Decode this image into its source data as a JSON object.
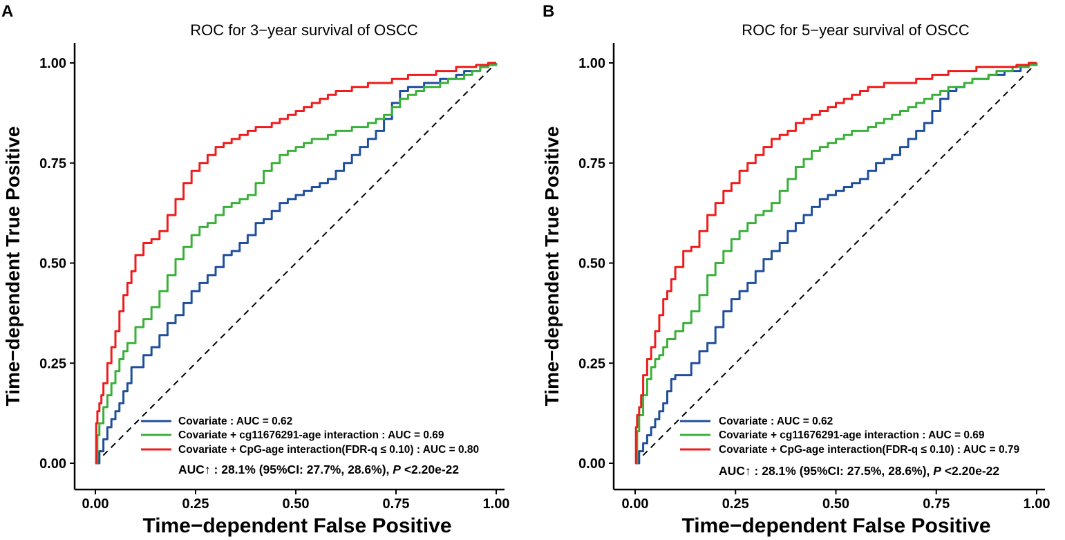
{
  "chart_data": [
    {
      "type": "line",
      "panel_label": "A",
      "title": "ROC for 3−year survival of OSCC",
      "xlabel": "Time−dependent False Positive",
      "ylabel": "Time−dependent True Positive",
      "xlim": [
        0,
        1
      ],
      "ylim": [
        0,
        1
      ],
      "xticks": [
        "0.00",
        "0.25",
        "0.50",
        "0.75",
        "1.00"
      ],
      "yticks": [
        "0.00",
        "0.25",
        "0.50",
        "0.75",
        "1.00"
      ],
      "reference_line": "diagonal dashed y = x",
      "legend_position": "bottom-right",
      "series": [
        {
          "name": "Covariate : AUC = 0.62",
          "color": "#1f4e9c",
          "x": [
            0,
            0.01,
            0.02,
            0.03,
            0.04,
            0.05,
            0.06,
            0.07,
            0.08,
            0.09,
            0.1,
            0.12,
            0.14,
            0.16,
            0.18,
            0.2,
            0.22,
            0.24,
            0.26,
            0.28,
            0.3,
            0.32,
            0.34,
            0.36,
            0.38,
            0.4,
            0.42,
            0.44,
            0.46,
            0.48,
            0.5,
            0.52,
            0.54,
            0.56,
            0.58,
            0.6,
            0.62,
            0.64,
            0.66,
            0.68,
            0.7,
            0.72,
            0.74,
            0.76,
            0.78,
            0.8,
            0.82,
            0.84,
            0.86,
            0.88,
            0.9,
            0.92,
            0.94,
            0.96,
            0.98,
            1.0
          ],
          "y": [
            0,
            0.03,
            0.06,
            0.09,
            0.11,
            0.13,
            0.15,
            0.18,
            0.2,
            0.24,
            0.24,
            0.27,
            0.29,
            0.32,
            0.35,
            0.37,
            0.4,
            0.43,
            0.45,
            0.47,
            0.49,
            0.52,
            0.53,
            0.55,
            0.57,
            0.6,
            0.61,
            0.63,
            0.65,
            0.66,
            0.67,
            0.68,
            0.69,
            0.7,
            0.71,
            0.73,
            0.75,
            0.77,
            0.79,
            0.81,
            0.83,
            0.86,
            0.9,
            0.93,
            0.94,
            0.94,
            0.95,
            0.95,
            0.96,
            0.96,
            0.97,
            0.98,
            0.98,
            0.99,
            0.995,
            1.0
          ]
        },
        {
          "name": "Covariate + cg11676291-age interaction : AUC = 0.69",
          "color": "#3ab03a",
          "x": [
            0,
            0.005,
            0.01,
            0.02,
            0.03,
            0.04,
            0.05,
            0.06,
            0.07,
            0.08,
            0.1,
            0.12,
            0.14,
            0.16,
            0.18,
            0.2,
            0.22,
            0.24,
            0.26,
            0.28,
            0.3,
            0.32,
            0.34,
            0.36,
            0.38,
            0.4,
            0.42,
            0.44,
            0.46,
            0.48,
            0.5,
            0.52,
            0.54,
            0.56,
            0.58,
            0.6,
            0.62,
            0.64,
            0.66,
            0.68,
            0.7,
            0.72,
            0.74,
            0.76,
            0.78,
            0.8,
            0.82,
            0.84,
            0.86,
            0.88,
            0.9,
            0.92,
            0.94,
            0.96,
            0.98,
            1.0
          ],
          "y": [
            0,
            0.07,
            0.1,
            0.14,
            0.17,
            0.2,
            0.23,
            0.26,
            0.28,
            0.3,
            0.34,
            0.36,
            0.39,
            0.43,
            0.47,
            0.51,
            0.54,
            0.57,
            0.59,
            0.6,
            0.62,
            0.64,
            0.65,
            0.66,
            0.67,
            0.7,
            0.73,
            0.75,
            0.77,
            0.78,
            0.79,
            0.8,
            0.81,
            0.81,
            0.82,
            0.83,
            0.83,
            0.84,
            0.84,
            0.85,
            0.86,
            0.87,
            0.89,
            0.91,
            0.92,
            0.93,
            0.94,
            0.94,
            0.95,
            0.96,
            0.96,
            0.97,
            0.98,
            0.99,
            0.995,
            1.0
          ]
        },
        {
          "name": "Covariate + CpG-age interaction(FDR-q ≤ 0.10) : AUC = 0.80",
          "color": "#ee1c1c",
          "x": [
            0,
            0.002,
            0.005,
            0.01,
            0.015,
            0.02,
            0.03,
            0.04,
            0.05,
            0.06,
            0.07,
            0.08,
            0.09,
            0.1,
            0.12,
            0.14,
            0.16,
            0.18,
            0.2,
            0.22,
            0.24,
            0.26,
            0.28,
            0.3,
            0.32,
            0.34,
            0.36,
            0.38,
            0.4,
            0.42,
            0.44,
            0.46,
            0.48,
            0.5,
            0.52,
            0.54,
            0.56,
            0.58,
            0.6,
            0.62,
            0.64,
            0.66,
            0.68,
            0.7,
            0.72,
            0.74,
            0.76,
            0.78,
            0.8,
            0.85,
            0.9,
            0.95,
            0.98,
            1.0
          ],
          "y": [
            0,
            0.1,
            0.13,
            0.15,
            0.17,
            0.2,
            0.25,
            0.29,
            0.33,
            0.38,
            0.42,
            0.45,
            0.48,
            0.52,
            0.55,
            0.56,
            0.58,
            0.62,
            0.66,
            0.7,
            0.73,
            0.75,
            0.77,
            0.79,
            0.8,
            0.81,
            0.82,
            0.83,
            0.84,
            0.84,
            0.85,
            0.86,
            0.87,
            0.88,
            0.89,
            0.9,
            0.91,
            0.92,
            0.93,
            0.93,
            0.94,
            0.94,
            0.95,
            0.95,
            0.95,
            0.96,
            0.96,
            0.97,
            0.97,
            0.98,
            0.99,
            0.995,
            1.0,
            1.0
          ]
        }
      ],
      "legend": [
        "Covariate : AUC = 0.62",
        "Covariate + cg11676291-age interaction : AUC = 0.69",
        "Covariate + CpG-age interaction(FDR-q ≤ 0.10) : AUC = 0.80"
      ],
      "annotation": {
        "prefix": "AUC↑ : 28.1% (95%CI: 27.7%, 28.6%), ",
        "p_label": "P",
        "p_value": " <2.20e-22"
      }
    },
    {
      "type": "line",
      "panel_label": "B",
      "title": "ROC for 5−year survival of OSCC",
      "xlabel": "Time−dependent False Positive",
      "ylabel": "Time−dependent True Positive",
      "xlim": [
        0,
        1
      ],
      "ylim": [
        0,
        1
      ],
      "xticks": [
        "0.00",
        "0.25",
        "0.50",
        "0.75",
        "1.00"
      ],
      "yticks": [
        "0.00",
        "0.25",
        "0.50",
        "0.75",
        "1.00"
      ],
      "reference_line": "diagonal dashed y = x",
      "legend_position": "bottom-right",
      "series": [
        {
          "name": "Covariate : AUC = 0.62",
          "color": "#1f4e9c",
          "x": [
            0,
            0.01,
            0.02,
            0.03,
            0.04,
            0.05,
            0.06,
            0.07,
            0.08,
            0.09,
            0.1,
            0.12,
            0.14,
            0.16,
            0.18,
            0.2,
            0.22,
            0.24,
            0.26,
            0.28,
            0.3,
            0.32,
            0.34,
            0.36,
            0.38,
            0.4,
            0.42,
            0.44,
            0.46,
            0.48,
            0.5,
            0.52,
            0.54,
            0.56,
            0.58,
            0.6,
            0.62,
            0.64,
            0.66,
            0.68,
            0.7,
            0.72,
            0.74,
            0.76,
            0.78,
            0.8,
            0.82,
            0.84,
            0.86,
            0.88,
            0.9,
            0.92,
            0.94,
            0.96,
            0.98,
            1.0
          ],
          "y": [
            0,
            0.03,
            0.05,
            0.07,
            0.09,
            0.11,
            0.13,
            0.15,
            0.18,
            0.21,
            0.22,
            0.22,
            0.25,
            0.28,
            0.3,
            0.34,
            0.38,
            0.41,
            0.43,
            0.45,
            0.48,
            0.51,
            0.53,
            0.55,
            0.58,
            0.6,
            0.62,
            0.64,
            0.66,
            0.67,
            0.68,
            0.69,
            0.7,
            0.71,
            0.73,
            0.75,
            0.76,
            0.77,
            0.79,
            0.81,
            0.83,
            0.85,
            0.88,
            0.91,
            0.93,
            0.94,
            0.95,
            0.96,
            0.96,
            0.97,
            0.97,
            0.98,
            0.98,
            0.99,
            0.995,
            1.0
          ]
        },
        {
          "name": "Covariate + cg11676291-age interaction : AUC = 0.69",
          "color": "#3ab03a",
          "x": [
            0,
            0.005,
            0.01,
            0.02,
            0.03,
            0.04,
            0.05,
            0.06,
            0.07,
            0.08,
            0.1,
            0.12,
            0.14,
            0.16,
            0.18,
            0.2,
            0.22,
            0.24,
            0.26,
            0.28,
            0.3,
            0.32,
            0.34,
            0.36,
            0.38,
            0.4,
            0.42,
            0.44,
            0.46,
            0.48,
            0.5,
            0.52,
            0.54,
            0.56,
            0.58,
            0.6,
            0.62,
            0.64,
            0.66,
            0.68,
            0.7,
            0.72,
            0.74,
            0.76,
            0.78,
            0.8,
            0.82,
            0.84,
            0.86,
            0.88,
            0.9,
            0.92,
            0.94,
            0.96,
            0.98,
            1.0
          ],
          "y": [
            0,
            0.08,
            0.12,
            0.17,
            0.21,
            0.24,
            0.26,
            0.27,
            0.29,
            0.31,
            0.33,
            0.35,
            0.38,
            0.42,
            0.47,
            0.5,
            0.53,
            0.56,
            0.58,
            0.6,
            0.62,
            0.63,
            0.65,
            0.68,
            0.71,
            0.74,
            0.76,
            0.78,
            0.79,
            0.8,
            0.81,
            0.82,
            0.83,
            0.83,
            0.84,
            0.85,
            0.86,
            0.87,
            0.88,
            0.89,
            0.9,
            0.91,
            0.92,
            0.93,
            0.94,
            0.94,
            0.95,
            0.96,
            0.96,
            0.97,
            0.98,
            0.98,
            0.99,
            0.99,
            0.995,
            1.0
          ]
        },
        {
          "name": "Covariate + CpG-age interaction(FDR-q ≤ 0.10) : AUC = 0.79",
          "color": "#ee1c1c",
          "x": [
            0,
            0.002,
            0.005,
            0.01,
            0.015,
            0.02,
            0.03,
            0.04,
            0.05,
            0.06,
            0.07,
            0.08,
            0.09,
            0.1,
            0.12,
            0.14,
            0.16,
            0.18,
            0.2,
            0.22,
            0.24,
            0.26,
            0.28,
            0.3,
            0.32,
            0.34,
            0.36,
            0.38,
            0.4,
            0.42,
            0.44,
            0.46,
            0.48,
            0.5,
            0.52,
            0.54,
            0.56,
            0.58,
            0.6,
            0.62,
            0.64,
            0.66,
            0.68,
            0.7,
            0.72,
            0.74,
            0.76,
            0.78,
            0.8,
            0.85,
            0.9,
            0.95,
            0.98,
            1.0
          ],
          "y": [
            0,
            0.09,
            0.12,
            0.14,
            0.17,
            0.22,
            0.26,
            0.29,
            0.33,
            0.37,
            0.41,
            0.43,
            0.46,
            0.49,
            0.53,
            0.54,
            0.58,
            0.62,
            0.65,
            0.68,
            0.7,
            0.73,
            0.75,
            0.77,
            0.79,
            0.81,
            0.82,
            0.83,
            0.85,
            0.86,
            0.87,
            0.88,
            0.89,
            0.9,
            0.91,
            0.92,
            0.93,
            0.94,
            0.94,
            0.95,
            0.95,
            0.95,
            0.95,
            0.96,
            0.96,
            0.97,
            0.97,
            0.98,
            0.98,
            0.99,
            0.99,
            0.995,
            1.0,
            1.0
          ]
        }
      ],
      "legend": [
        "Covariate : AUC = 0.62",
        "Covariate + cg11676291-age interaction : AUC = 0.69",
        "Covariate + CpG-age interaction(FDR-q ≤ 0.10) : AUC = 0.79"
      ],
      "annotation": {
        "prefix": "AUC↑ : 28.1% (95%CI: 27.5%, 28.6%), ",
        "p_label": "P",
        "p_value": " <2.20e-22"
      }
    }
  ]
}
